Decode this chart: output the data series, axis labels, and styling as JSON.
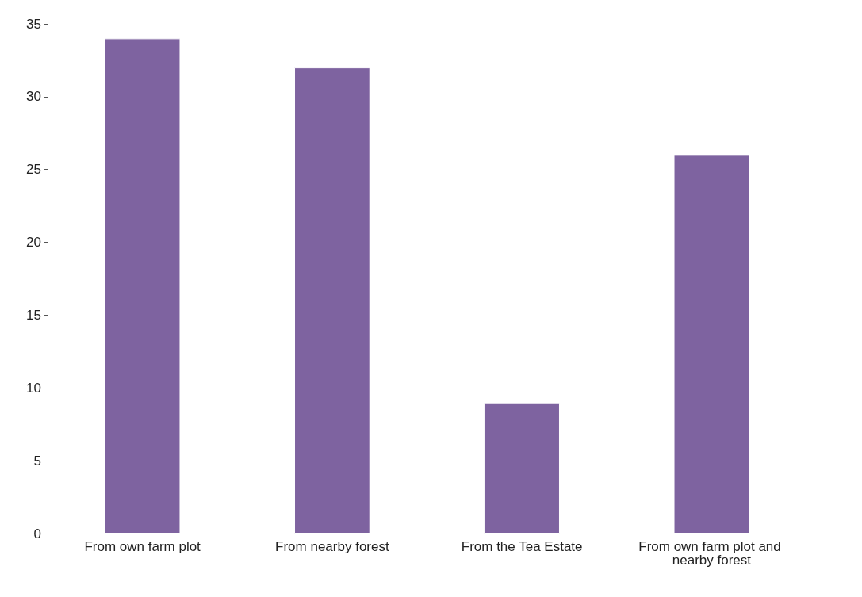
{
  "chart_data": {
    "type": "bar",
    "categories": [
      "From own farm plot",
      "From nearby forest",
      "From the Tea Estate",
      "From own farm plot and nearby forest"
    ],
    "values": [
      34,
      32,
      9,
      26
    ],
    "color": "#7e63a0",
    "ylim": [
      0,
      35
    ],
    "yticks": [
      0,
      5,
      10,
      15,
      20,
      25,
      30,
      35
    ],
    "grid": false
  }
}
